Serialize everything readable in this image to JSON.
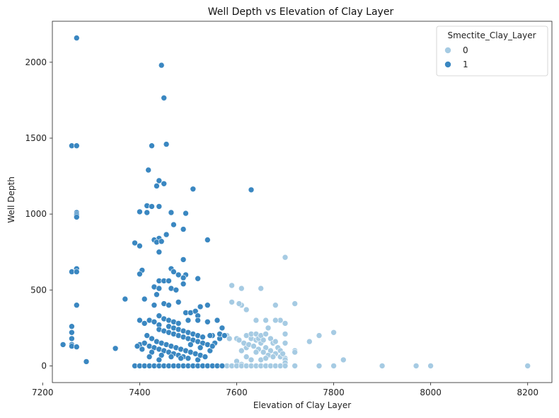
{
  "chart_data": {
    "type": "scatter",
    "title": "Well Depth vs Elevation of Clay Layer",
    "xlabel": "Elevation of Clay Layer",
    "ylabel": "Well Depth",
    "xlim": [
      7220,
      8250
    ],
    "ylim": [
      -110,
      2270
    ],
    "xticks": [
      7200,
      7400,
      7600,
      7800,
      8000,
      8200
    ],
    "yticks": [
      0,
      500,
      1000,
      1500,
      2000
    ],
    "grid": false,
    "legend": {
      "title": "Smectite_Clay_Layer",
      "placement": "top-right",
      "entries": [
        "0",
        "1"
      ]
    },
    "series": [
      {
        "name": "0",
        "color": "#a6cbe3",
        "points": [
          [
            7590,
            530
          ],
          [
            7590,
            420
          ],
          [
            7610,
            510
          ],
          [
            7610,
            400
          ],
          [
            7605,
            410
          ],
          [
            7620,
            370
          ],
          [
            7650,
            510
          ],
          [
            7700,
            715
          ],
          [
            7720,
            410
          ],
          [
            7680,
            400
          ],
          [
            7690,
            300
          ],
          [
            7700,
            280
          ],
          [
            7700,
            210
          ],
          [
            7700,
            150
          ],
          [
            7720,
            100
          ],
          [
            7720,
            90
          ],
          [
            7750,
            160
          ],
          [
            7770,
            200
          ],
          [
            7800,
            220
          ],
          [
            7680,
            300
          ],
          [
            7660,
            300
          ],
          [
            7665,
            250
          ],
          [
            7640,
            300
          ],
          [
            7620,
            200
          ],
          [
            7630,
            180
          ],
          [
            7640,
            170
          ],
          [
            7650,
            150
          ],
          [
            7660,
            120
          ],
          [
            7670,
            100
          ],
          [
            7680,
            80
          ],
          [
            7690,
            60
          ],
          [
            7700,
            50
          ],
          [
            7700,
            40
          ],
          [
            7610,
            100
          ],
          [
            7620,
            60
          ],
          [
            7620,
            120
          ],
          [
            7630,
            210
          ],
          [
            7640,
            210
          ],
          [
            7645,
            180
          ],
          [
            7650,
            200
          ],
          [
            7655,
            170
          ],
          [
            7660,
            210
          ],
          [
            7670,
            180
          ],
          [
            7675,
            150
          ],
          [
            7680,
            160
          ],
          [
            7685,
            120
          ],
          [
            7690,
            100
          ],
          [
            7695,
            80
          ],
          [
            7700,
            20
          ],
          [
            7615,
            150
          ],
          [
            7625,
            140
          ],
          [
            7635,
            130
          ],
          [
            7645,
            110
          ],
          [
            7655,
            90
          ],
          [
            7665,
            70
          ],
          [
            7675,
            60
          ],
          [
            7600,
            30
          ],
          [
            7610,
            10
          ],
          [
            7580,
            200
          ],
          [
            7585,
            180
          ],
          [
            7600,
            180
          ],
          [
            7605,
            170
          ],
          [
            7640,
            90
          ],
          [
            7650,
            40
          ],
          [
            7630,
            40
          ],
          [
            7660,
            50
          ],
          [
            7820,
            40
          ],
          [
            7580,
            0
          ],
          [
            7590,
            0
          ],
          [
            7600,
            0
          ],
          [
            7610,
            0
          ],
          [
            7620,
            0
          ],
          [
            7630,
            0
          ],
          [
            7640,
            0
          ],
          [
            7650,
            0
          ],
          [
            7660,
            0
          ],
          [
            7670,
            0
          ],
          [
            7680,
            0
          ],
          [
            7690,
            0
          ],
          [
            7700,
            0
          ],
          [
            7720,
            0
          ],
          [
            7770,
            0
          ],
          [
            7800,
            0
          ],
          [
            7900,
            0
          ],
          [
            7970,
            0
          ],
          [
            8000,
            0
          ],
          [
            8200,
            0
          ]
        ]
      },
      {
        "name": "1",
        "color": "#3a87c1",
        "points": [
          [
            7270,
            2160
          ],
          [
            7445,
            1980
          ],
          [
            7450,
            1765
          ],
          [
            7425,
            1450
          ],
          [
            7455,
            1460
          ],
          [
            7260,
            1450
          ],
          [
            7270,
            1450
          ],
          [
            7418,
            1290
          ],
          [
            7510,
            1165
          ],
          [
            7630,
            1160
          ],
          [
            7440,
            1220
          ],
          [
            7450,
            1200
          ],
          [
            7435,
            1185
          ],
          [
            7270,
            1010
          ],
          [
            7270,
            1000
          ],
          [
            7270,
            990
          ],
          [
            7270,
            980
          ],
          [
            7400,
            1015
          ],
          [
            7415,
            1010
          ],
          [
            7415,
            1055
          ],
          [
            7425,
            1050
          ],
          [
            7440,
            1050
          ],
          [
            7465,
            1010
          ],
          [
            7495,
            1005
          ],
          [
            7470,
            930
          ],
          [
            7490,
            900
          ],
          [
            7455,
            865
          ],
          [
            7440,
            840
          ],
          [
            7430,
            830
          ],
          [
            7435,
            815
          ],
          [
            7445,
            820
          ],
          [
            7390,
            810
          ],
          [
            7400,
            790
          ],
          [
            7440,
            750
          ],
          [
            7540,
            830
          ],
          [
            7490,
            700
          ],
          [
            7270,
            640
          ],
          [
            7260,
            620
          ],
          [
            7270,
            620
          ],
          [
            7405,
            630
          ],
          [
            7400,
            605
          ],
          [
            7465,
            640
          ],
          [
            7470,
            620
          ],
          [
            7480,
            600
          ],
          [
            7495,
            600
          ],
          [
            7490,
            580
          ],
          [
            7520,
            575
          ],
          [
            7440,
            560
          ],
          [
            7450,
            560
          ],
          [
            7460,
            560
          ],
          [
            7465,
            510
          ],
          [
            7475,
            500
          ],
          [
            7490,
            540
          ],
          [
            7430,
            520
          ],
          [
            7440,
            510
          ],
          [
            7435,
            470
          ],
          [
            7370,
            440
          ],
          [
            7270,
            400
          ],
          [
            7410,
            440
          ],
          [
            7430,
            400
          ],
          [
            7450,
            410
          ],
          [
            7460,
            400
          ],
          [
            7480,
            420
          ],
          [
            7495,
            350
          ],
          [
            7505,
            350
          ],
          [
            7515,
            360
          ],
          [
            7525,
            390
          ],
          [
            7540,
            400
          ],
          [
            7520,
            330
          ],
          [
            7440,
            330
          ],
          [
            7450,
            310
          ],
          [
            7400,
            300
          ],
          [
            7410,
            280
          ],
          [
            7420,
            300
          ],
          [
            7430,
            290
          ],
          [
            7440,
            270
          ],
          [
            7460,
            300
          ],
          [
            7470,
            290
          ],
          [
            7480,
            280
          ],
          [
            7500,
            300
          ],
          [
            7520,
            300
          ],
          [
            7540,
            290
          ],
          [
            7560,
            300
          ],
          [
            7570,
            250
          ],
          [
            7550,
            200
          ],
          [
            7260,
            260
          ],
          [
            7260,
            220
          ],
          [
            7260,
            180
          ],
          [
            7260,
            140
          ],
          [
            7260,
            130
          ],
          [
            7270,
            125
          ],
          [
            7242,
            140
          ],
          [
            7350,
            115
          ],
          [
            7290,
            28
          ],
          [
            7400,
            140
          ],
          [
            7410,
            150
          ],
          [
            7420,
            130
          ],
          [
            7430,
            120
          ],
          [
            7440,
            110
          ],
          [
            7450,
            100
          ],
          [
            7460,
            90
          ],
          [
            7470,
            80
          ],
          [
            7480,
            70
          ],
          [
            7490,
            60
          ],
          [
            7500,
            50
          ],
          [
            7520,
            40
          ],
          [
            7395,
            130
          ],
          [
            7415,
            200
          ],
          [
            7425,
            180
          ],
          [
            7435,
            160
          ],
          [
            7445,
            150
          ],
          [
            7455,
            140
          ],
          [
            7465,
            130
          ],
          [
            7475,
            120
          ],
          [
            7485,
            110
          ],
          [
            7495,
            100
          ],
          [
            7505,
            90
          ],
          [
            7515,
            80
          ],
          [
            7525,
            70
          ],
          [
            7535,
            60
          ],
          [
            7545,
            100
          ],
          [
            7555,
            150
          ],
          [
            7565,
            180
          ],
          [
            7440,
            240
          ],
          [
            7450,
            230
          ],
          [
            7460,
            220
          ],
          [
            7470,
            210
          ],
          [
            7480,
            200
          ],
          [
            7490,
            190
          ],
          [
            7500,
            180
          ],
          [
            7510,
            170
          ],
          [
            7520,
            160
          ],
          [
            7530,
            150
          ],
          [
            7540,
            140
          ],
          [
            7550,
            130
          ],
          [
            7460,
            260
          ],
          [
            7470,
            250
          ],
          [
            7480,
            240
          ],
          [
            7490,
            230
          ],
          [
            7500,
            220
          ],
          [
            7510,
            210
          ],
          [
            7520,
            200
          ],
          [
            7530,
            190
          ],
          [
            7405,
            110
          ],
          [
            7425,
            90
          ],
          [
            7445,
            70
          ],
          [
            7465,
            60
          ],
          [
            7485,
            50
          ],
          [
            7505,
            140
          ],
          [
            7525,
            120
          ],
          [
            7545,
            200
          ],
          [
            7565,
            210
          ],
          [
            7575,
            200
          ],
          [
            7420,
            60
          ],
          [
            7440,
            40
          ],
          [
            7390,
            0
          ],
          [
            7400,
            0
          ],
          [
            7410,
            0
          ],
          [
            7420,
            0
          ],
          [
            7430,
            0
          ],
          [
            7440,
            0
          ],
          [
            7450,
            0
          ],
          [
            7460,
            0
          ],
          [
            7470,
            0
          ],
          [
            7480,
            0
          ],
          [
            7490,
            0
          ],
          [
            7500,
            0
          ],
          [
            7510,
            0
          ],
          [
            7520,
            0
          ],
          [
            7530,
            0
          ],
          [
            7540,
            0
          ],
          [
            7550,
            0
          ],
          [
            7560,
            0
          ],
          [
            7570,
            0
          ]
        ]
      }
    ]
  }
}
